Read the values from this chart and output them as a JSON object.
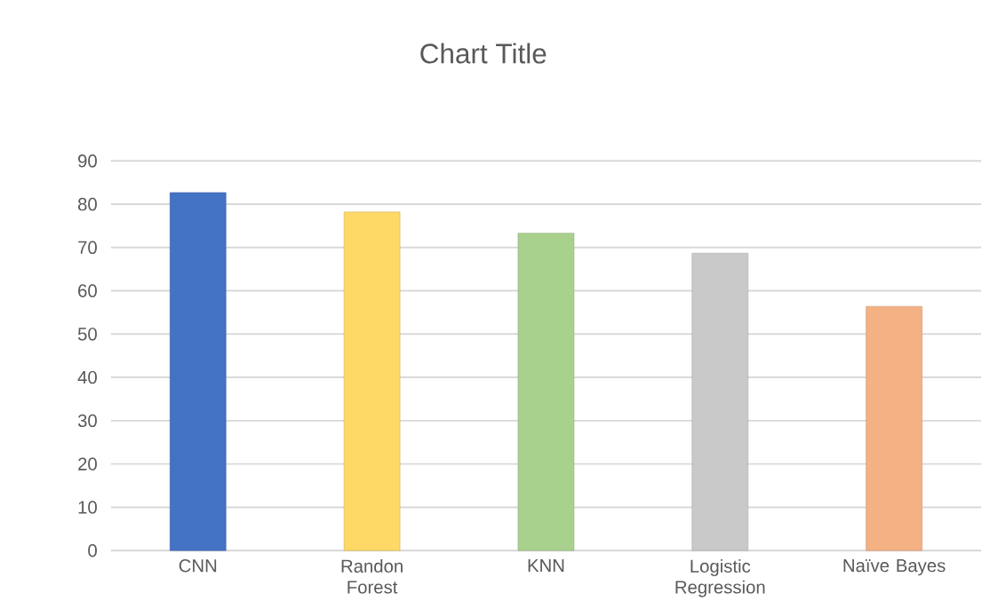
{
  "chart_data": {
    "type": "bar",
    "title": "Chart Title",
    "categories": [
      "CNN",
      "Randon Forest",
      "KNN",
      "Logistic Regression",
      "Naïve Bayes"
    ],
    "values": [
      82.7,
      78.2,
      73.3,
      68.7,
      56.4
    ],
    "colors": [
      "#4472c4",
      "#ffd966",
      "#a9d18e",
      "#c9c9c9",
      "#f4b183"
    ],
    "ylim": [
      0,
      90
    ],
    "yticks": [
      0,
      10,
      20,
      30,
      40,
      50,
      60,
      70,
      80,
      90
    ],
    "grid": "y"
  }
}
